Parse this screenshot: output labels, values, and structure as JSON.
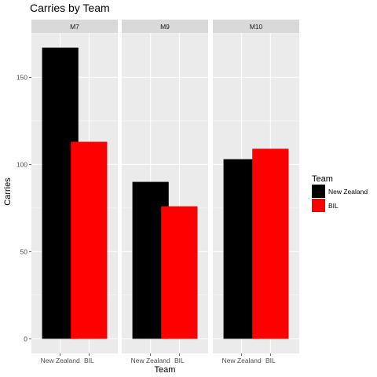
{
  "chart_data": {
    "type": "bar",
    "title": "Carries  by Team",
    "xlabel": "Team",
    "ylabel": "Carries",
    "categories": [
      "New Zealand",
      "BIL"
    ],
    "yticks": [
      0,
      50,
      100,
      150
    ],
    "ylim": [
      -8.4,
      175.4
    ],
    "grid": true,
    "legend": {
      "title": "Team",
      "position": "right",
      "entries": [
        "New Zealand",
        "BIL"
      ]
    },
    "colors": {
      "New Zealand": "#000000",
      "BIL": "#ff0000",
      "panel_bg": "#ebebeb",
      "strip_bg": "#d9d9d9",
      "grid": "#ffffff"
    },
    "facets": [
      {
        "label": "M7",
        "values": [
          167,
          113
        ]
      },
      {
        "label": "M9",
        "values": [
          90,
          76
        ]
      },
      {
        "label": "M10",
        "values": [
          103,
          109
        ]
      }
    ]
  }
}
